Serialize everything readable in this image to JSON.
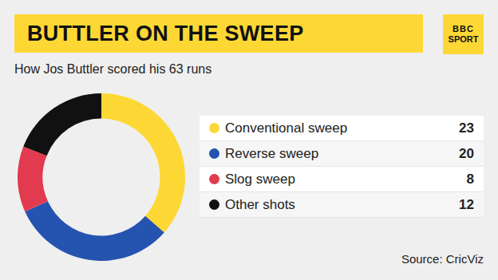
{
  "chart_data": {
    "type": "pie",
    "title": "BUTTLER ON THE SWEEP",
    "subtitle": "How Jos Buttler scored his 63 runs",
    "categories": [
      "Conventional sweep",
      "Reverse sweep",
      "Slog sweep",
      "Other shots"
    ],
    "values": [
      23,
      20,
      8,
      12
    ],
    "colors": [
      "#fdd835",
      "#2553b0",
      "#e23a4e",
      "#111111"
    ],
    "legend": "right",
    "source": "Source: CricViz",
    "logo": [
      "BBC",
      "SPORT"
    ]
  }
}
